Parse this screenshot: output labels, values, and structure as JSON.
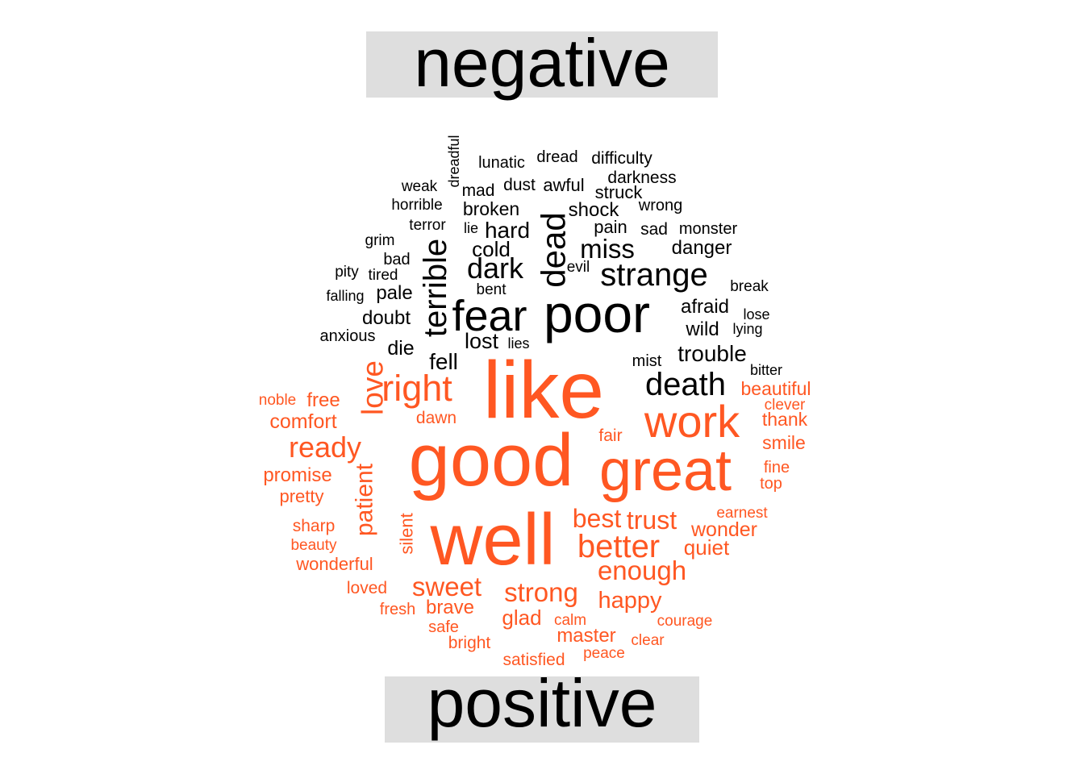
{
  "chart_data": {
    "type": "wordcloud",
    "groups": [
      {
        "name": "negative",
        "color": "#000000"
      },
      {
        "name": "positive",
        "color": "#ff5722"
      }
    ],
    "words": [
      {
        "text": "poor",
        "group": "negative"
      },
      {
        "text": "fear",
        "group": "negative"
      },
      {
        "text": "dead",
        "group": "negative"
      },
      {
        "text": "terrible",
        "group": "negative"
      },
      {
        "text": "strange",
        "group": "negative"
      },
      {
        "text": "death",
        "group": "negative"
      },
      {
        "text": "dark",
        "group": "negative"
      },
      {
        "text": "miss",
        "group": "negative"
      },
      {
        "text": "hard",
        "group": "negative"
      },
      {
        "text": "trouble",
        "group": "negative"
      },
      {
        "text": "lost",
        "group": "negative"
      },
      {
        "text": "fell",
        "group": "negative"
      },
      {
        "text": "cold",
        "group": "negative"
      },
      {
        "text": "danger",
        "group": "negative"
      },
      {
        "text": "shock",
        "group": "negative"
      },
      {
        "text": "broken",
        "group": "negative"
      },
      {
        "text": "doubt",
        "group": "negative"
      },
      {
        "text": "afraid",
        "group": "negative"
      },
      {
        "text": "wild",
        "group": "negative"
      },
      {
        "text": "die",
        "group": "negative"
      },
      {
        "text": "pale",
        "group": "negative"
      },
      {
        "text": "awful",
        "group": "negative"
      },
      {
        "text": "pain",
        "group": "negative"
      },
      {
        "text": "struck",
        "group": "negative"
      },
      {
        "text": "mad",
        "group": "negative"
      },
      {
        "text": "dust",
        "group": "negative"
      },
      {
        "text": "darkness",
        "group": "negative"
      },
      {
        "text": "sad",
        "group": "negative"
      },
      {
        "text": "wrong",
        "group": "negative"
      },
      {
        "text": "difficulty",
        "group": "negative"
      },
      {
        "text": "monster",
        "group": "negative"
      },
      {
        "text": "dread",
        "group": "negative"
      },
      {
        "text": "lunatic",
        "group": "negative"
      },
      {
        "text": "weak",
        "group": "negative"
      },
      {
        "text": "horrible",
        "group": "negative"
      },
      {
        "text": "terror",
        "group": "negative"
      },
      {
        "text": "bad",
        "group": "negative"
      },
      {
        "text": "grim",
        "group": "negative"
      },
      {
        "text": "anxious",
        "group": "negative"
      },
      {
        "text": "mist",
        "group": "negative"
      },
      {
        "text": "break",
        "group": "negative"
      },
      {
        "text": "evil",
        "group": "negative"
      },
      {
        "text": "bent",
        "group": "negative"
      },
      {
        "text": "tired",
        "group": "negative"
      },
      {
        "text": "pity",
        "group": "negative"
      },
      {
        "text": "falling",
        "group": "negative"
      },
      {
        "text": "lie",
        "group": "negative"
      },
      {
        "text": "lies",
        "group": "negative"
      },
      {
        "text": "lose",
        "group": "negative"
      },
      {
        "text": "lying",
        "group": "negative"
      },
      {
        "text": "bitter",
        "group": "negative"
      },
      {
        "text": "dreadful",
        "group": "negative"
      },
      {
        "text": "like",
        "group": "positive"
      },
      {
        "text": "good",
        "group": "positive"
      },
      {
        "text": "well",
        "group": "positive"
      },
      {
        "text": "great",
        "group": "positive"
      },
      {
        "text": "work",
        "group": "positive"
      },
      {
        "text": "right",
        "group": "positive"
      },
      {
        "text": "love",
        "group": "positive"
      },
      {
        "text": "better",
        "group": "positive"
      },
      {
        "text": "ready",
        "group": "positive"
      },
      {
        "text": "sweet",
        "group": "positive"
      },
      {
        "text": "enough",
        "group": "positive"
      },
      {
        "text": "strong",
        "group": "positive"
      },
      {
        "text": "trust",
        "group": "positive"
      },
      {
        "text": "best",
        "group": "positive"
      },
      {
        "text": "patient",
        "group": "positive"
      },
      {
        "text": "happy",
        "group": "positive"
      },
      {
        "text": "wonder",
        "group": "positive"
      },
      {
        "text": "quiet",
        "group": "positive"
      },
      {
        "text": "comfort",
        "group": "positive"
      },
      {
        "text": "promise",
        "group": "positive"
      },
      {
        "text": "glad",
        "group": "positive"
      },
      {
        "text": "brave",
        "group": "positive"
      },
      {
        "text": "master",
        "group": "positive"
      },
      {
        "text": "beautiful",
        "group": "positive"
      },
      {
        "text": "thank",
        "group": "positive"
      },
      {
        "text": "smile",
        "group": "positive"
      },
      {
        "text": "free",
        "group": "positive"
      },
      {
        "text": "silent",
        "group": "positive"
      },
      {
        "text": "pretty",
        "group": "positive"
      },
      {
        "text": "wonderful",
        "group": "positive"
      },
      {
        "text": "dawn",
        "group": "positive"
      },
      {
        "text": "sharp",
        "group": "positive"
      },
      {
        "text": "fair",
        "group": "positive"
      },
      {
        "text": "satisfied",
        "group": "positive"
      },
      {
        "text": "loved",
        "group": "positive"
      },
      {
        "text": "fresh",
        "group": "positive"
      },
      {
        "text": "bright",
        "group": "positive"
      },
      {
        "text": "safe",
        "group": "positive"
      },
      {
        "text": "fine",
        "group": "positive"
      },
      {
        "text": "top",
        "group": "positive"
      },
      {
        "text": "earnest",
        "group": "positive"
      },
      {
        "text": "clever",
        "group": "positive"
      },
      {
        "text": "noble",
        "group": "positive"
      },
      {
        "text": "beauty",
        "group": "positive"
      },
      {
        "text": "calm",
        "group": "positive"
      },
      {
        "text": "peace",
        "group": "positive"
      },
      {
        "text": "clear",
        "group": "positive"
      },
      {
        "text": "courage",
        "group": "positive"
      }
    ]
  }
}
